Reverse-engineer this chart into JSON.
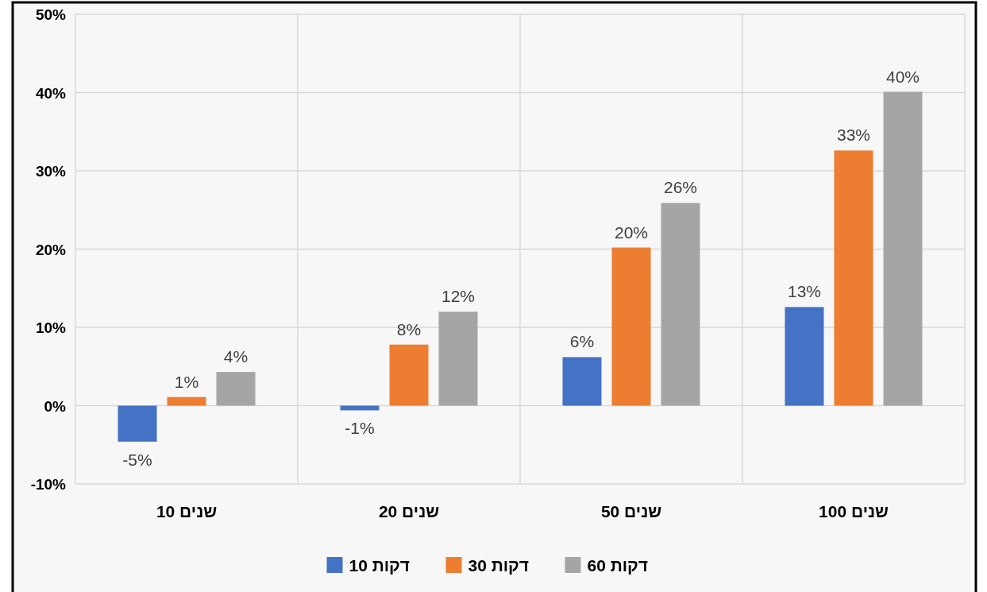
{
  "chart_data": {
    "type": "bar",
    "categories": [
      "שנים 10",
      "שנים 20",
      "שנים 50",
      "שנים 100"
    ],
    "series": [
      {
        "name": "דקות 10",
        "color": "#4472c4",
        "values": [
          -4.6,
          -0.6,
          6.2,
          12.6
        ],
        "value_labels": [
          "-5%",
          "-1%",
          "6%",
          "13%"
        ]
      },
      {
        "name": "דקות 30",
        "color": "#ed7d31",
        "values": [
          1.1,
          7.8,
          20.2,
          32.6
        ],
        "value_labels": [
          "1%",
          "8%",
          "20%",
          "33%"
        ]
      },
      {
        "name": "דקות 60",
        "color": "#a5a5a5",
        "values": [
          4.3,
          12,
          25.9,
          40.1
        ],
        "value_labels": [
          "4%",
          "12%",
          "26%",
          "40%"
        ]
      }
    ],
    "ylim": [
      -10,
      50
    ],
    "yticks": [
      {
        "value": -10,
        "label": "-10%"
      },
      {
        "value": 0,
        "label": "0%"
      },
      {
        "value": 10,
        "label": "10%"
      },
      {
        "value": 20,
        "label": "20%"
      },
      {
        "value": 30,
        "label": "30%"
      },
      {
        "value": 40,
        "label": "40%"
      },
      {
        "value": 50,
        "label": "50%"
      }
    ],
    "grid": true,
    "legend": "bottom"
  }
}
